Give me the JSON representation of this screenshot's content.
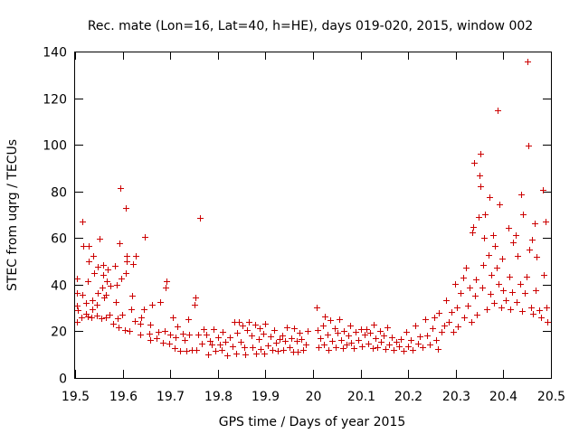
{
  "chart_data": {
    "type": "scatter",
    "title": "Rec. mate (Lon=16, Lat=40, h=HE), days 019-020, 2015, window 002",
    "xlabel": "GPS time / Days of year 2015",
    "ylabel": "STEC from uqrg / TECUs",
    "xlim": [
      19.5,
      20.5
    ],
    "ylim": [
      0,
      140
    ],
    "xticks": [
      19.5,
      19.6,
      19.7,
      19.8,
      19.9,
      20.0,
      20.1,
      20.2,
      20.3,
      20.4,
      20.5
    ],
    "xtick_labels": [
      "19.5",
      "19.6",
      "19.7",
      "19.8",
      "19.9",
      "20",
      "20.1",
      "20.2",
      "20.3",
      "20.4",
      "20.5"
    ],
    "yticks": [
      0,
      20,
      40,
      60,
      80,
      100,
      120,
      140
    ],
    "ytick_labels": [
      "0",
      "20",
      "40",
      "60",
      "80",
      "100",
      "120",
      "140"
    ],
    "grid": false,
    "marker": "+",
    "color": "#cc0000",
    "series": [
      {
        "name": "STEC",
        "points": [
          [
            19.503,
            24.2
          ],
          [
            19.503,
            31
          ],
          [
            19.503,
            36.4
          ],
          [
            19.504,
            42.6
          ],
          [
            19.505,
            29.1
          ],
          [
            19.513,
            25.9
          ],
          [
            19.515,
            35.7
          ],
          [
            19.516,
            67.2
          ],
          [
            19.517,
            56.5
          ],
          [
            19.522,
            27.7
          ],
          [
            19.523,
            32
          ],
          [
            19.526,
            26.3
          ],
          [
            19.527,
            41.6
          ],
          [
            19.528,
            50.2
          ],
          [
            19.529,
            56.5
          ],
          [
            19.535,
            26.1
          ],
          [
            19.536,
            29.4
          ],
          [
            19.537,
            33.2
          ],
          [
            19.538,
            52.2
          ],
          [
            19.539,
            45
          ],
          [
            19.545,
            26.7
          ],
          [
            19.546,
            31.3
          ],
          [
            19.547,
            36.4
          ],
          [
            19.548,
            47.6
          ],
          [
            19.552,
            59.9
          ],
          [
            19.555,
            25.7
          ],
          [
            19.557,
            38.8
          ],
          [
            19.558,
            44.1
          ],
          [
            19.559,
            48.5
          ],
          [
            19.56,
            34.4
          ],
          [
            19.565,
            26
          ],
          [
            19.565,
            35.5
          ],
          [
            19.566,
            41.4
          ],
          [
            19.568,
            46.7
          ],
          [
            19.572,
            27.1
          ],
          [
            19.575,
            39.5
          ],
          [
            19.58,
            23.2
          ],
          [
            19.583,
            48.1
          ],
          [
            19.585,
            32.5
          ],
          [
            19.587,
            40
          ],
          [
            19.589,
            25.5
          ],
          [
            19.592,
            21.6
          ],
          [
            19.594,
            57.7
          ],
          [
            19.595,
            81.5
          ],
          [
            19.597,
            42.6
          ],
          [
            19.598,
            27.2
          ],
          [
            19.604,
            20.6
          ],
          [
            19.606,
            45
          ],
          [
            19.607,
            72.8
          ],
          [
            19.608,
            49.9
          ],
          [
            19.609,
            52.3
          ],
          [
            19.615,
            20.2
          ],
          [
            19.617,
            29.6
          ],
          [
            19.62,
            35.2
          ],
          [
            19.622,
            49
          ],
          [
            19.626,
            24.3
          ],
          [
            19.628,
            52.3
          ],
          [
            19.636,
            18.5
          ],
          [
            19.637,
            23.4
          ],
          [
            19.638,
            26.1
          ],
          [
            19.645,
            29.3
          ],
          [
            19.647,
            60.5
          ],
          [
            19.655,
            19.1
          ],
          [
            19.657,
            22.7
          ],
          [
            19.658,
            16.2
          ],
          [
            19.662,
            31.4
          ],
          [
            19.672,
            17.2
          ],
          [
            19.675,
            19.9
          ],
          [
            19.678,
            32.5
          ],
          [
            19.685,
            15.2
          ],
          [
            19.688,
            20.1
          ],
          [
            19.69,
            38.7
          ],
          [
            19.692,
            41.5
          ],
          [
            19.698,
            14.6
          ],
          [
            19.7,
            18.6
          ],
          [
            19.705,
            25.8
          ],
          [
            19.71,
            12.7
          ],
          [
            19.711,
            17.6
          ],
          [
            19.715,
            22
          ],
          [
            19.72,
            11.7
          ],
          [
            19.726,
            19.1
          ],
          [
            19.73,
            16.3
          ],
          [
            19.733,
            11.8
          ],
          [
            19.738,
            25.2
          ],
          [
            19.74,
            18.7
          ],
          [
            19.745,
            12
          ],
          [
            19.75,
            31.5
          ],
          [
            19.752,
            34.6
          ],
          [
            19.755,
            12.2
          ],
          [
            19.758,
            18.6
          ],
          [
            19.762,
            68.6
          ],
          [
            19.766,
            14.6
          ],
          [
            19.77,
            21.1
          ],
          [
            19.775,
            18.5
          ],
          [
            19.78,
            10.1
          ],
          [
            19.783,
            16
          ],
          [
            19.787,
            14.3
          ],
          [
            19.79,
            21.1
          ],
          [
            19.795,
            11.5
          ],
          [
            19.8,
            17.4
          ],
          [
            19.805,
            14.3
          ],
          [
            19.808,
            12.2
          ],
          [
            19.81,
            19.7
          ],
          [
            19.815,
            15.5
          ],
          [
            19.82,
            9.6
          ],
          [
            19.825,
            17.4
          ],
          [
            19.83,
            13.7
          ],
          [
            19.835,
            23.9
          ],
          [
            19.838,
            10.6
          ],
          [
            19.84,
            19.5
          ],
          [
            19.845,
            24.1
          ],
          [
            19.848,
            15.4
          ],
          [
            19.852,
            22.6
          ],
          [
            19.855,
            13
          ],
          [
            19.858,
            10.2
          ],
          [
            19.862,
            20.6
          ],
          [
            19.865,
            24.2
          ],
          [
            19.87,
            18.2
          ],
          [
            19.873,
            13.3
          ],
          [
            19.878,
            22.8
          ],
          [
            19.88,
            10.6
          ],
          [
            19.885,
            16.5
          ],
          [
            19.888,
            21.4
          ],
          [
            19.89,
            12.6
          ],
          [
            19.895,
            19.1
          ],
          [
            19.898,
            10.3
          ],
          [
            19.9,
            23.4
          ],
          [
            19.905,
            14.1
          ],
          [
            19.91,
            17.7
          ],
          [
            19.915,
            12.1
          ],
          [
            19.918,
            20.5
          ],
          [
            19.922,
            15
          ],
          [
            19.925,
            11.7
          ],
          [
            19.93,
            16.8
          ],
          [
            19.935,
            18.2
          ],
          [
            19.938,
            12.2
          ],
          [
            19.942,
            16
          ],
          [
            19.945,
            21.8
          ],
          [
            19.95,
            13.1
          ],
          [
            19.955,
            17.2
          ],
          [
            19.958,
            11.3
          ],
          [
            19.96,
            21.3
          ],
          [
            19.965,
            15.8
          ],
          [
            19.968,
            11.1
          ],
          [
            19.972,
            19.2
          ],
          [
            19.975,
            16.6
          ],
          [
            19.98,
            12.2
          ],
          [
            19.984,
            14.4
          ],
          [
            19.988,
            20.1
          ],
          [
            20.008,
            30.1
          ],
          [
            20.01,
            20.5
          ],
          [
            20.012,
            13.2
          ],
          [
            20.015,
            17
          ],
          [
            20.02,
            22.6
          ],
          [
            20.022,
            14.3
          ],
          [
            20.025,
            26.5
          ],
          [
            20.03,
            18.6
          ],
          [
            20.033,
            12.1
          ],
          [
            20.037,
            24.7
          ],
          [
            20.04,
            15.8
          ],
          [
            20.045,
            21.4
          ],
          [
            20.048,
            13.3
          ],
          [
            20.052,
            19.4
          ],
          [
            20.055,
            25.2
          ],
          [
            20.058,
            16.1
          ],
          [
            20.062,
            12.8
          ],
          [
            20.065,
            20.3
          ],
          [
            20.07,
            14.2
          ],
          [
            20.075,
            18.2
          ],
          [
            20.078,
            22.3
          ],
          [
            20.08,
            15.2
          ],
          [
            20.085,
            12.9
          ],
          [
            20.09,
            19.7
          ],
          [
            20.095,
            16.1
          ],
          [
            20.1,
            20.9
          ],
          [
            20.103,
            13.5
          ],
          [
            20.108,
            18.7
          ],
          [
            20.112,
            21.1
          ],
          [
            20.116,
            14.9
          ],
          [
            20.12,
            19.2
          ],
          [
            20.125,
            12.7
          ],
          [
            20.128,
            22.7
          ],
          [
            20.132,
            17.1
          ],
          [
            20.135,
            13.3
          ],
          [
            20.14,
            20.3
          ],
          [
            20.143,
            15.4
          ],
          [
            20.148,
            18.4
          ],
          [
            20.152,
            12.6
          ],
          [
            20.155,
            21.8
          ],
          [
            20.16,
            14.3
          ],
          [
            20.165,
            17.3
          ],
          [
            20.17,
            12.1
          ],
          [
            20.175,
            15.4
          ],
          [
            20.18,
            13.6
          ],
          [
            20.185,
            16.5
          ],
          [
            20.19,
            11.8
          ],
          [
            20.195,
            19.6
          ],
          [
            20.2,
            13.5
          ],
          [
            20.205,
            16.2
          ],
          [
            20.21,
            12.2
          ],
          [
            20.215,
            22.4
          ],
          [
            20.22,
            14.6
          ],
          [
            20.225,
            17.8
          ],
          [
            20.23,
            13
          ],
          [
            20.235,
            25.2
          ],
          [
            20.24,
            18.4
          ],
          [
            20.245,
            14.3
          ],
          [
            20.25,
            21.5
          ],
          [
            20.255,
            26.1
          ],
          [
            20.258,
            16.1
          ],
          [
            20.262,
            12.5
          ],
          [
            20.265,
            28.1
          ],
          [
            20.27,
            19.6
          ],
          [
            20.275,
            22.3
          ],
          [
            20.28,
            33.5
          ],
          [
            20.285,
            24.2
          ],
          [
            20.29,
            28.2
          ],
          [
            20.295,
            19.7
          ],
          [
            20.298,
            40.5
          ],
          [
            20.302,
            30.2
          ],
          [
            20.305,
            22.1
          ],
          [
            20.31,
            36.4
          ],
          [
            20.315,
            43.2
          ],
          [
            20.318,
            26.1
          ],
          [
            20.322,
            47.4
          ],
          [
            20.325,
            31.1
          ],
          [
            20.328,
            38.6
          ],
          [
            20.332,
            24
          ],
          [
            20.335,
            62.4
          ],
          [
            20.336,
            64.8
          ],
          [
            20.338,
            92.2
          ],
          [
            20.34,
            35.3
          ],
          [
            20.343,
            42.2
          ],
          [
            20.345,
            27.3
          ],
          [
            20.348,
            69
          ],
          [
            20.35,
            86.9
          ],
          [
            20.351,
            96.3
          ],
          [
            20.352,
            82.2
          ],
          [
            20.355,
            38.7
          ],
          [
            20.358,
            48.6
          ],
          [
            20.36,
            60.3
          ],
          [
            20.362,
            70.2
          ],
          [
            20.365,
            29.3
          ],
          [
            20.368,
            52.6
          ],
          [
            20.37,
            77.5
          ],
          [
            20.372,
            36.2
          ],
          [
            20.375,
            44.1
          ],
          [
            20.378,
            61.4
          ],
          [
            20.38,
            32.3
          ],
          [
            20.383,
            56.5
          ],
          [
            20.385,
            47.2
          ],
          [
            20.388,
            114.6
          ],
          [
            20.39,
            40.5
          ],
          [
            20.392,
            74.4
          ],
          [
            20.395,
            30.2
          ],
          [
            20.398,
            51.3
          ],
          [
            20.4,
            37.5
          ],
          [
            20.405,
            33.2
          ],
          [
            20.41,
            64.5
          ],
          [
            20.413,
            43.6
          ],
          [
            20.415,
            29.5
          ],
          [
            20.418,
            36.7
          ],
          [
            20.42,
            58.1
          ],
          [
            20.425,
            61.1
          ],
          [
            20.428,
            32.6
          ],
          [
            20.43,
            52.3
          ],
          [
            20.435,
            40.2
          ],
          [
            20.438,
            78.8
          ],
          [
            20.44,
            28.6
          ],
          [
            20.442,
            70.2
          ],
          [
            20.445,
            36.4
          ],
          [
            20.448,
            43.5
          ],
          [
            20.45,
            135.8
          ],
          [
            20.452,
            99.5
          ],
          [
            20.455,
            55.1
          ],
          [
            20.458,
            30.4
          ],
          [
            20.46,
            59.4
          ],
          [
            20.462,
            27.4
          ],
          [
            20.465,
            66.3
          ],
          [
            20.468,
            37.5
          ],
          [
            20.47,
            51.8
          ],
          [
            20.475,
            29.2
          ],
          [
            20.48,
            25.8
          ],
          [
            20.483,
            80.7
          ],
          [
            20.485,
            44.2
          ],
          [
            20.488,
            67.2
          ],
          [
            20.49,
            30.3
          ],
          [
            20.493,
            24.2
          ]
        ]
      }
    ]
  }
}
